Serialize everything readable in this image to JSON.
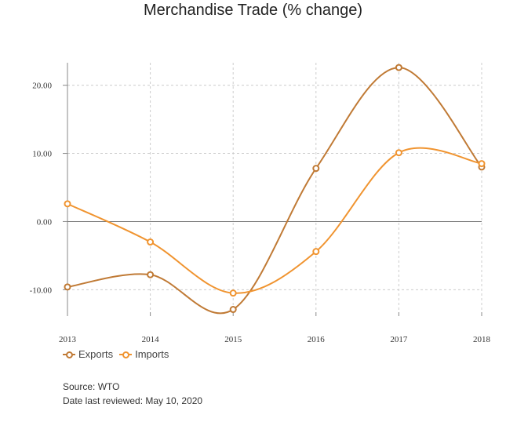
{
  "chart_data": {
    "type": "line",
    "title": "Merchandise Trade (% change)",
    "x": [
      "2013",
      "2014",
      "2015",
      "2016",
      "2017",
      "2018"
    ],
    "y_ticks": [
      "20.00",
      "10.00",
      "0.00",
      "-10.00"
    ],
    "y_tick_values": [
      20,
      10,
      0,
      -10
    ],
    "ylim": [
      -13.3,
      23.3
    ],
    "grid": true,
    "legend_position": "bottom-left",
    "series": [
      {
        "name": "Exports",
        "color": "#c07a35",
        "values": [
          -9.6,
          -7.8,
          -12.9,
          7.8,
          22.6,
          8.0
        ]
      },
      {
        "name": "Imports",
        "color": "#f09430",
        "values": [
          2.6,
          -3.0,
          -10.5,
          -4.4,
          10.1,
          8.5
        ]
      }
    ]
  },
  "footer": {
    "source": "Source: WTO",
    "date": "Date last reviewed: May 10, 2020"
  }
}
